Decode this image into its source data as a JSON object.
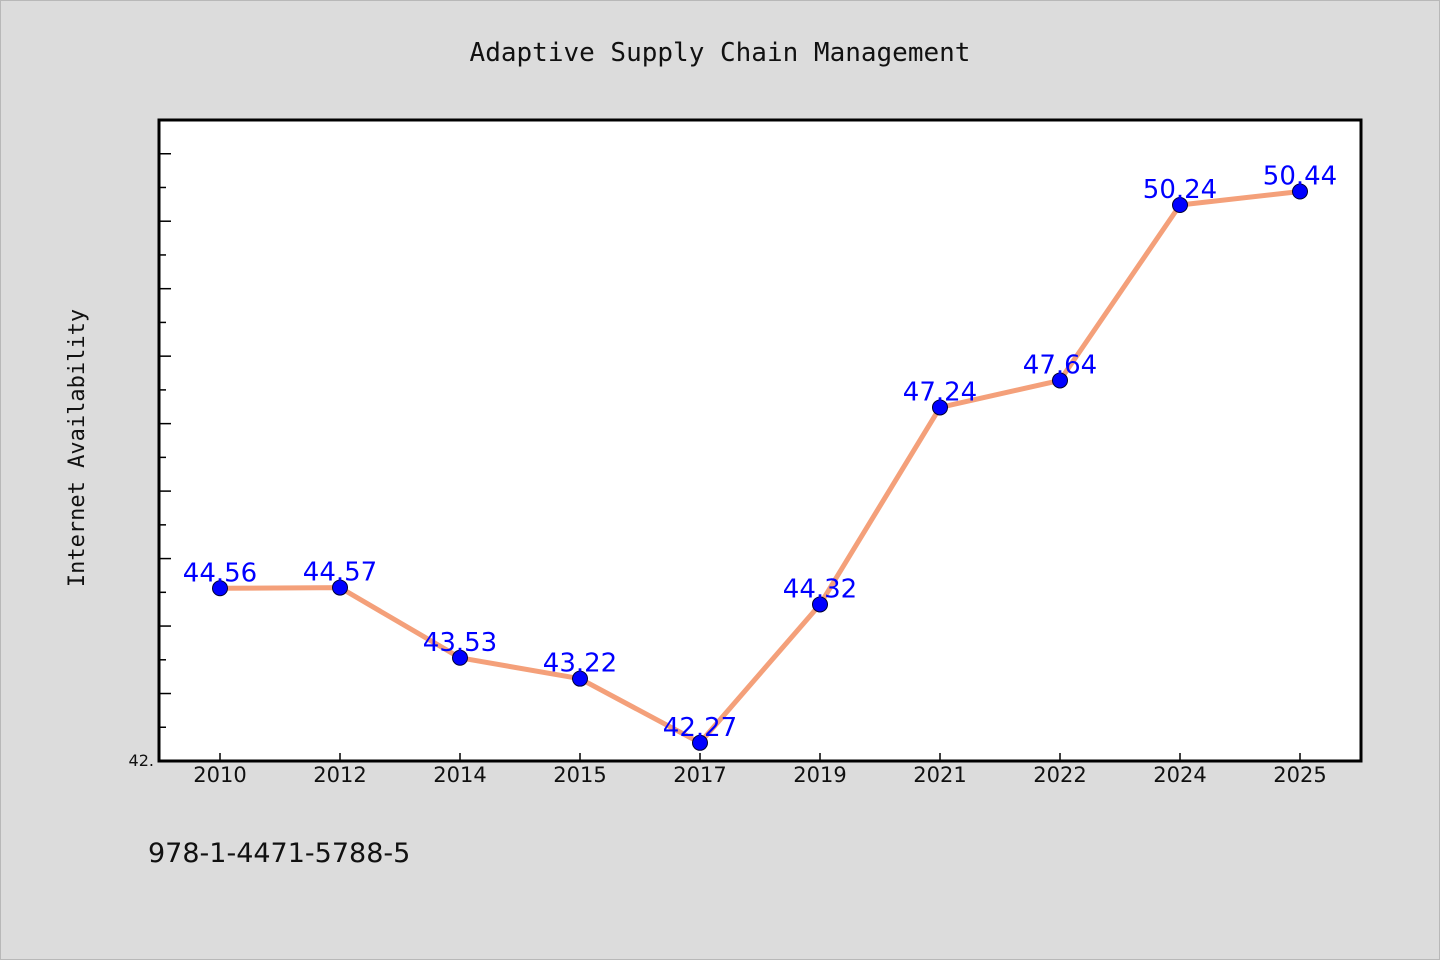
{
  "chart_data": {
    "type": "line",
    "title": "Adaptive Supply Chain Management",
    "xlabel": "",
    "ylabel": "Internet Availability",
    "categories": [
      "2010",
      "2012",
      "2014",
      "2015",
      "2017",
      "2019",
      "2021",
      "2022",
      "2024",
      "2025"
    ],
    "series": [
      {
        "values": [
          44.56,
          44.57,
          43.53,
          43.22,
          42.27,
          44.32,
          47.24,
          47.64,
          50.24,
          50.44
        ]
      }
    ],
    "data_labels": [
      "44.56",
      "44.57",
      "43.53",
      "43.22",
      "42.27",
      "44.32",
      "47.24",
      "47.64",
      "50.24",
      "50.44"
    ],
    "ylim": [
      42.0,
      51.5
    ],
    "y_tick_label": "42.",
    "grid": false,
    "line_color": "#f4a07a",
    "marker_color": "#0000ff",
    "label_color": "#0000ff"
  },
  "footer": {
    "isbn": "978-1-4471-5788-5"
  }
}
